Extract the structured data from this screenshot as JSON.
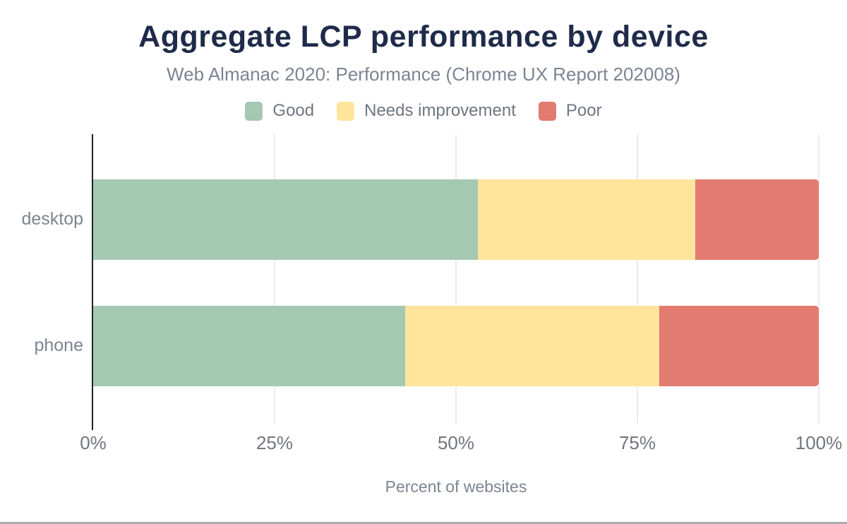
{
  "header": {
    "title": "Aggregate LCP performance by device",
    "subtitle": "Web Almanac 2020: Performance (Chrome UX Report 202008)"
  },
  "legend": {
    "items": [
      {
        "label": "Good",
        "color": "#a5c8b3"
      },
      {
        "label": "Needs improvement",
        "color": "#ffe49c"
      },
      {
        "label": "Poor",
        "color": "#e27b70"
      }
    ]
  },
  "chart_data": {
    "type": "bar",
    "orientation": "horizontal",
    "stacked": true,
    "title": "Aggregate LCP performance by device",
    "subtitle": "Web Almanac 2020: Performance (Chrome UX Report 202008)",
    "categories": [
      "desktop",
      "phone"
    ],
    "series": [
      {
        "name": "Good",
        "color": "#a5c8b3",
        "values": [
          53,
          43
        ]
      },
      {
        "name": "Needs improvement",
        "color": "#ffe49c",
        "values": [
          30,
          35
        ]
      },
      {
        "name": "Poor",
        "color": "#e27b70",
        "values": [
          17,
          22
        ]
      }
    ],
    "xlabel": "Percent of websites",
    "ylabel": "",
    "xlim": [
      0,
      100
    ],
    "x_ticks": [
      {
        "label": "0%",
        "value": 0
      },
      {
        "label": "25%",
        "value": 25
      },
      {
        "label": "50%",
        "value": 50
      },
      {
        "label": "75%",
        "value": 75
      },
      {
        "label": "100%",
        "value": 100
      }
    ],
    "grid": "vertical",
    "legend_position": "top"
  },
  "colors": {
    "title": "#1f2b4a",
    "subtitle": "#7c8493",
    "axis_line": "#212121",
    "gridline": "#ebebeb",
    "tick_text": "#71767f",
    "bottom_rule": "#ababaf"
  }
}
